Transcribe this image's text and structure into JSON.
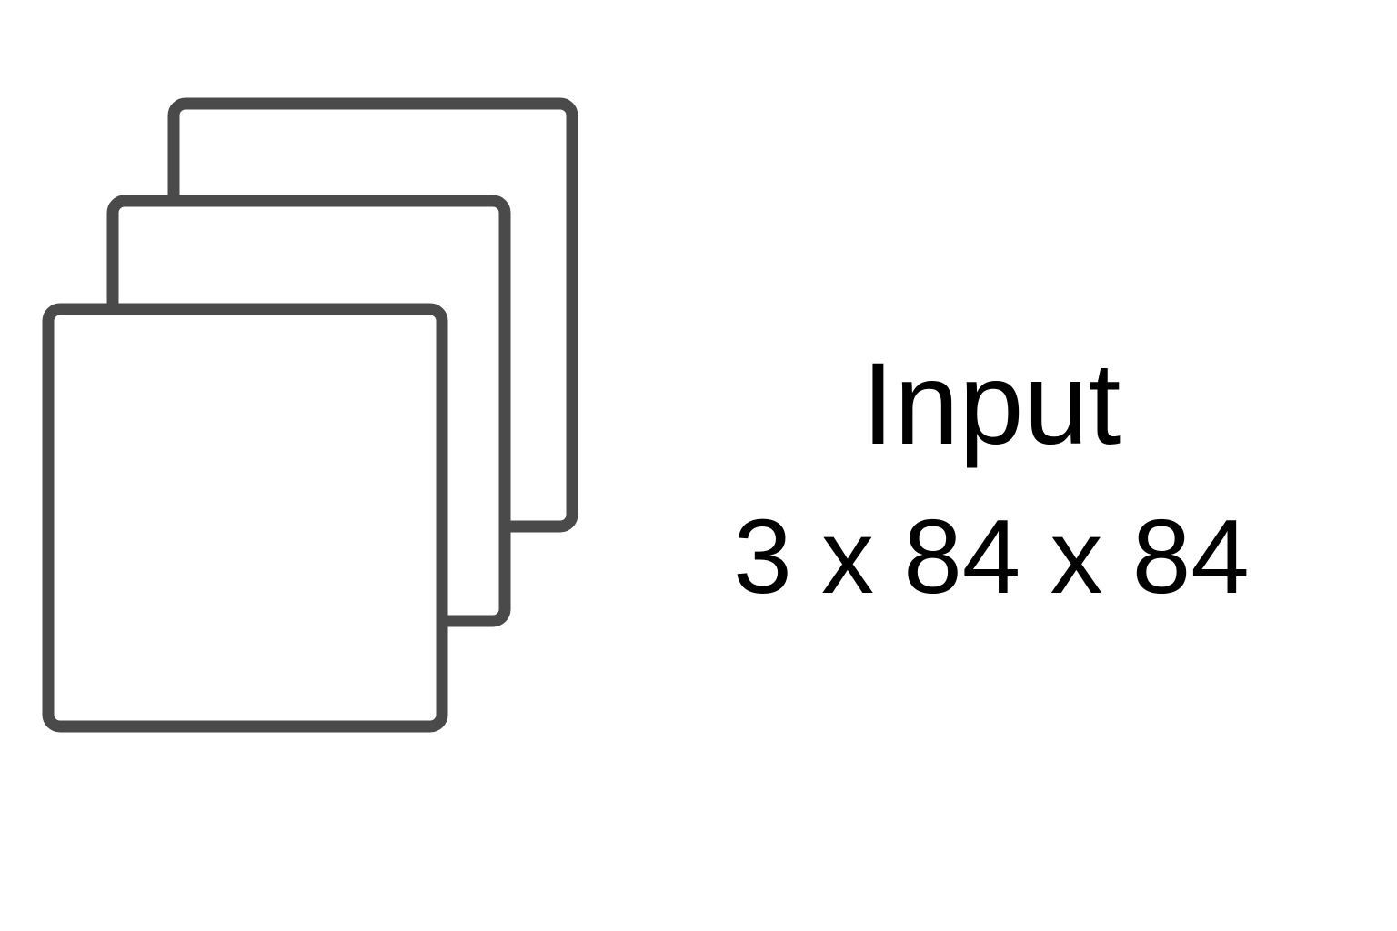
{
  "diagram": {
    "stack_icon": "stacked-layers-icon",
    "layer_count": 3,
    "stroke_color": "#4a4a4a",
    "fill_color": "#ffffff",
    "label": {
      "title": "Input",
      "dimensions": "3 x 84 x 84"
    }
  }
}
